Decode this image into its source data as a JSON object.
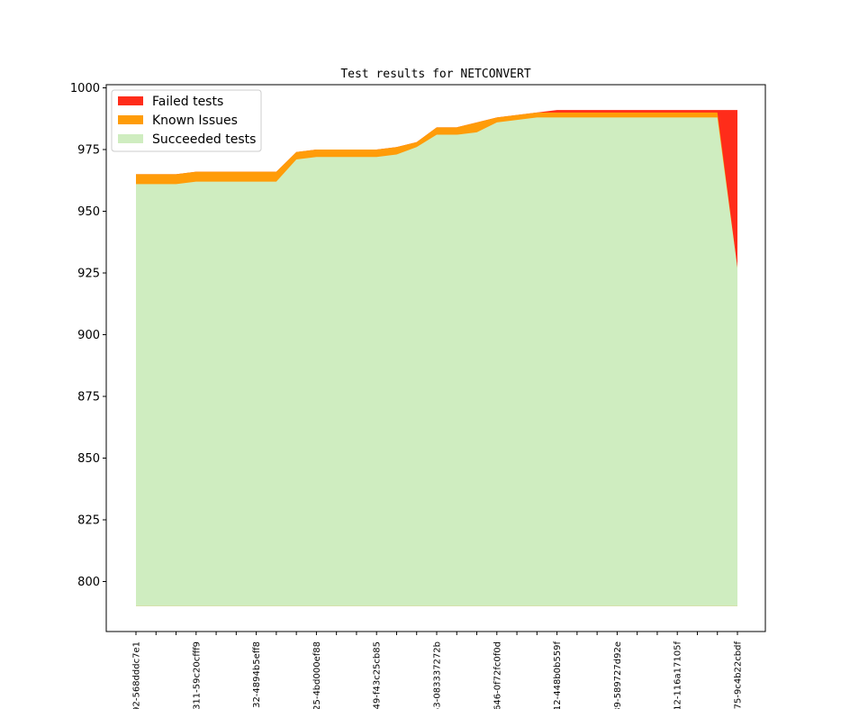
{
  "chart_data": {
    "type": "area",
    "stacked": true,
    "title": "Test results for NETCONVERT",
    "xlabel": "",
    "ylabel": "",
    "ylim": [
      780,
      1001
    ],
    "yticks": [
      800,
      825,
      850,
      875,
      900,
      925,
      950,
      975,
      1000
    ],
    "grid": false,
    "legend_position": "top-left",
    "x_labels_shown": [
      {
        "index": 0,
        "label": "92-568dddc7e1"
      },
      {
        "index": 3,
        "label": "311-59c20cfff9"
      },
      {
        "index": 6,
        "label": "32-4894b5eff8"
      },
      {
        "index": 9,
        "label": "25-4bd000ef88"
      },
      {
        "index": 12,
        "label": "49-f43c25cb85"
      },
      {
        "index": 15,
        "label": "53-083337272b"
      },
      {
        "index": 18,
        "label": "646-0f72fc0f0d"
      },
      {
        "index": 21,
        "label": "12-448b0b559f"
      },
      {
        "index": 24,
        "label": "39-589727d92e"
      },
      {
        "index": 27,
        "label": "12-116a17105f"
      },
      {
        "index": 30,
        "label": "75-9c4b22cbdf"
      }
    ],
    "x_count": 31,
    "baseline": 790,
    "series": [
      {
        "name": "Succeeded tests",
        "color": "#cfedc0",
        "values": [
          961,
          961,
          961,
          962,
          962,
          962,
          962,
          962,
          971,
          972,
          972,
          972,
          972,
          973,
          976,
          981,
          981,
          982,
          986,
          987,
          988,
          988,
          988,
          988,
          988,
          988,
          988,
          988,
          988,
          988,
          927
        ]
      },
      {
        "name": "Known Issues",
        "color": "#ff9c09",
        "values": [
          965,
          965,
          965,
          966,
          966,
          966,
          966,
          966,
          974,
          975,
          975,
          975,
          975,
          976,
          978,
          984,
          984,
          986,
          988,
          989,
          990,
          990,
          990,
          990,
          990,
          990,
          990,
          990,
          990,
          990,
          927
        ]
      },
      {
        "name": "Failed tests",
        "color": "#ff2c1a",
        "values": [
          965,
          965,
          965,
          966,
          966,
          966,
          966,
          966,
          974,
          975,
          975,
          975,
          975,
          976,
          978,
          984,
          984,
          986,
          988,
          989,
          990,
          991,
          991,
          991,
          991,
          991,
          991,
          991,
          991,
          991,
          991
        ]
      }
    ]
  }
}
